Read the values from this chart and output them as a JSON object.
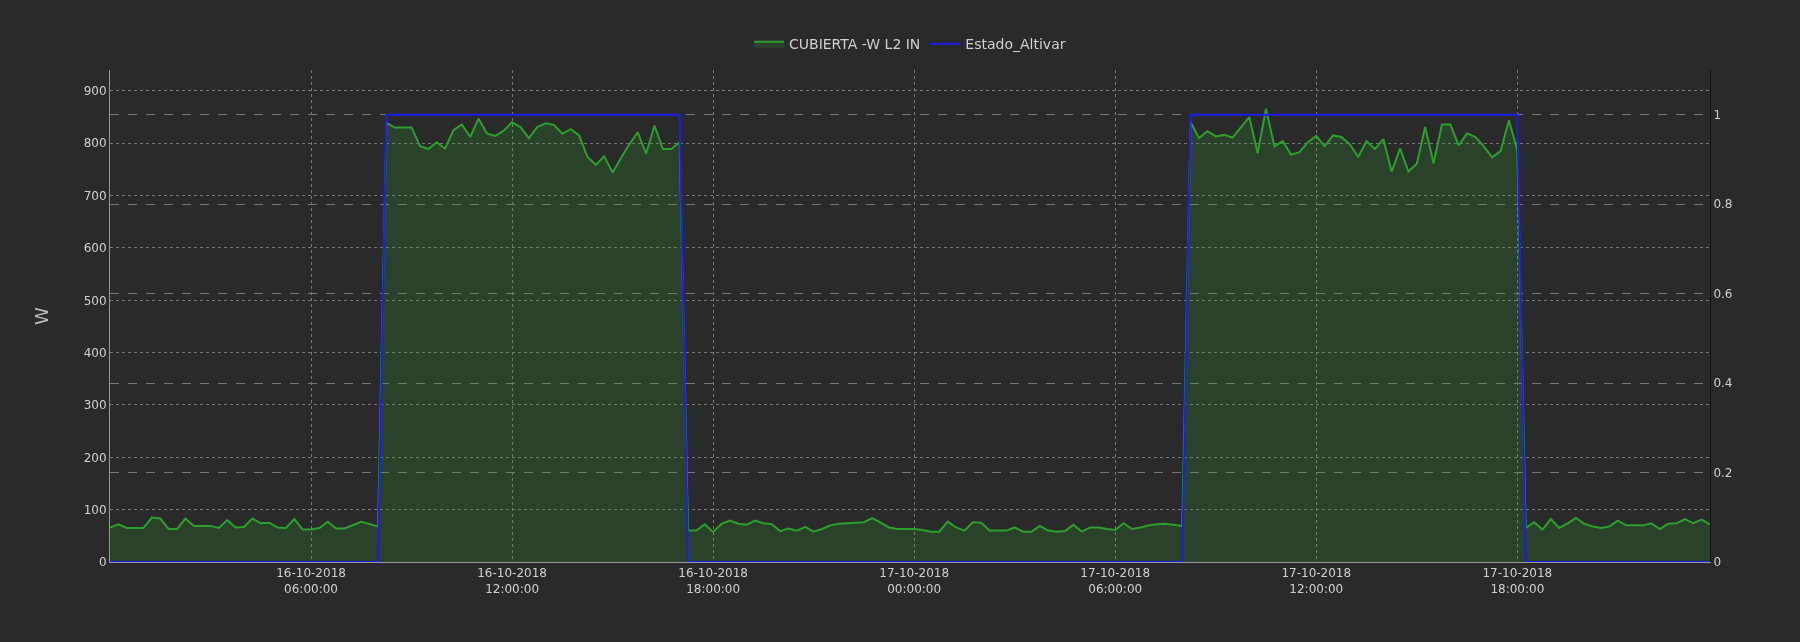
{
  "chart_data": {
    "type": "area",
    "ylabel": "W",
    "legend": "top",
    "grid": true,
    "marker": "none",
    "line_style": "solid",
    "xlim": [
      "2018-10-16T00:00",
      "2018-10-17T23:45"
    ],
    "xticks": [
      {
        "value": "2018-10-16T06:00",
        "label": "16-10-2018\n06:00:00"
      },
      {
        "value": "2018-10-16T12:00",
        "label": "16-10-2018\n12:00:00"
      },
      {
        "value": "2018-10-16T18:00",
        "label": "16-10-2018\n18:00:00"
      },
      {
        "value": "2018-10-17T00:00",
        "label": "17-10-2018\n00:00:00"
      },
      {
        "value": "2018-10-17T06:00",
        "label": "17-10-2018\n06:00:00"
      },
      {
        "value": "2018-10-17T12:00",
        "label": "17-10-2018\n12:00:00"
      },
      {
        "value": "2018-10-17T18:00",
        "label": "17-10-2018\n18:00:00"
      }
    ],
    "ylim": [
      0,
      940
    ],
    "yticks": [
      0,
      100,
      200,
      300,
      400,
      500,
      600,
      700,
      800,
      900
    ],
    "y2lim": [
      0,
      1.1
    ],
    "y2ticks": [
      0,
      0.2,
      0.4,
      0.6,
      0.8,
      1
    ],
    "series": [
      {
        "name": "CUBIERTA -W L2 IN",
        "color": "#2ca02c",
        "x": [
          "2018-10-16T00:00",
          "2018-10-16T00:15",
          "2018-10-16T00:30",
          "2018-10-16T01:00",
          "2018-10-16T01:15",
          "2018-10-16T01:30",
          "2018-10-16T01:45",
          "2018-10-16T02:00",
          "2018-10-16T02:15",
          "2018-10-16T02:30",
          "2018-10-16T03:00",
          "2018-10-16T03:15",
          "2018-10-16T03:30",
          "2018-10-16T03:45",
          "2018-10-16T04:00",
          "2018-10-16T04:15",
          "2018-10-16T04:30",
          "2018-10-16T04:45",
          "2018-10-16T05:00",
          "2018-10-16T05:15",
          "2018-10-16T05:30",
          "2018-10-16T05:45",
          "2018-10-16T06:00",
          "2018-10-16T06:15",
          "2018-10-16T06:30",
          "2018-10-16T06:45",
          "2018-10-16T07:00",
          "2018-10-16T07:30",
          "2018-10-16T08:00",
          "2018-10-16T08:15",
          "2018-10-16T08:30",
          "2018-10-16T08:45",
          "2018-10-16T09:00",
          "2018-10-16T09:15",
          "2018-10-16T09:30",
          "2018-10-16T09:45",
          "2018-10-16T10:00",
          "2018-10-16T10:15",
          "2018-10-16T10:30",
          "2018-10-16T10:45",
          "2018-10-16T11:00",
          "2018-10-16T11:15",
          "2018-10-16T11:30",
          "2018-10-16T11:45",
          "2018-10-16T12:00",
          "2018-10-16T12:15",
          "2018-10-16T12:30",
          "2018-10-16T12:45",
          "2018-10-16T13:00",
          "2018-10-16T13:15",
          "2018-10-16T13:30",
          "2018-10-16T13:45",
          "2018-10-16T14:00",
          "2018-10-16T14:15",
          "2018-10-16T14:30",
          "2018-10-16T14:45",
          "2018-10-16T15:00",
          "2018-10-16T15:15",
          "2018-10-16T15:30",
          "2018-10-16T15:45",
          "2018-10-16T16:00",
          "2018-10-16T16:15",
          "2018-10-16T16:30",
          "2018-10-16T16:45",
          "2018-10-16T17:00",
          "2018-10-16T17:15",
          "2018-10-16T17:30",
          "2018-10-16T17:45",
          "2018-10-16T18:00",
          "2018-10-16T18:15",
          "2018-10-16T18:30",
          "2018-10-16T18:45",
          "2018-10-16T19:00",
          "2018-10-16T19:15",
          "2018-10-16T19:30",
          "2018-10-16T19:45",
          "2018-10-16T20:00",
          "2018-10-16T20:15",
          "2018-10-16T20:30",
          "2018-10-16T20:45",
          "2018-10-16T21:00",
          "2018-10-16T21:15",
          "2018-10-16T21:30",
          "2018-10-16T21:45",
          "2018-10-16T22:00",
          "2018-10-16T22:15",
          "2018-10-16T22:30",
          "2018-10-16T22:45",
          "2018-10-16T23:00",
          "2018-10-16T23:15",
          "2018-10-16T23:30",
          "2018-10-16T23:45",
          "2018-10-17T00:00",
          "2018-10-17T00:15",
          "2018-10-17T00:30",
          "2018-10-17T00:45",
          "2018-10-17T01:00",
          "2018-10-17T01:15",
          "2018-10-17T01:30",
          "2018-10-17T01:45",
          "2018-10-17T02:00",
          "2018-10-17T02:15",
          "2018-10-17T02:30",
          "2018-10-17T02:45",
          "2018-10-17T03:00",
          "2018-10-17T03:15",
          "2018-10-17T03:30",
          "2018-10-17T03:45",
          "2018-10-17T04:00",
          "2018-10-17T04:15",
          "2018-10-17T04:30",
          "2018-10-17T04:45",
          "2018-10-17T05:00",
          "2018-10-17T05:15",
          "2018-10-17T05:30",
          "2018-10-17T05:45",
          "2018-10-17T06:00",
          "2018-10-17T06:15",
          "2018-10-17T06:30",
          "2018-10-17T06:45",
          "2018-10-17T07:00",
          "2018-10-17T07:15",
          "2018-10-17T07:30",
          "2018-10-17T08:00",
          "2018-10-17T08:15",
          "2018-10-17T08:30",
          "2018-10-17T08:45",
          "2018-10-17T09:00",
          "2018-10-17T09:15",
          "2018-10-17T09:30",
          "2018-10-17T10:00",
          "2018-10-17T10:15",
          "2018-10-17T10:30",
          "2018-10-17T10:45",
          "2018-10-17T11:00",
          "2018-10-17T11:15",
          "2018-10-17T11:30",
          "2018-10-17T11:45",
          "2018-10-17T12:00",
          "2018-10-17T12:15",
          "2018-10-17T12:30",
          "2018-10-17T12:45",
          "2018-10-17T13:00",
          "2018-10-17T13:15",
          "2018-10-17T13:30",
          "2018-10-17T13:45",
          "2018-10-17T14:00",
          "2018-10-17T14:15",
          "2018-10-17T14:30",
          "2018-10-17T14:45",
          "2018-10-17T15:00",
          "2018-10-17T15:15",
          "2018-10-17T15:30",
          "2018-10-17T15:45",
          "2018-10-17T16:00",
          "2018-10-17T16:15",
          "2018-10-17T16:30",
          "2018-10-17T16:45",
          "2018-10-17T17:00",
          "2018-10-17T17:15",
          "2018-10-17T17:30",
          "2018-10-17T17:45",
          "2018-10-17T18:00",
          "2018-10-17T18:15",
          "2018-10-17T18:30",
          "2018-10-17T18:45",
          "2018-10-17T19:00",
          "2018-10-17T19:15",
          "2018-10-17T19:30",
          "2018-10-17T19:45",
          "2018-10-17T20:00",
          "2018-10-17T20:15",
          "2018-10-17T20:30",
          "2018-10-17T20:45",
          "2018-10-17T21:00",
          "2018-10-17T21:15",
          "2018-10-17T21:30",
          "2018-10-17T21:45",
          "2018-10-17T22:00",
          "2018-10-17T22:15",
          "2018-10-17T22:30",
          "2018-10-17T22:45",
          "2018-10-17T23:00",
          "2018-10-17T23:15",
          "2018-10-17T23:30",
          "2018-10-17T23:45"
        ],
        "values": [
          66,
          72,
          65,
          65,
          85,
          83,
          63,
          63,
          83,
          69,
          69,
          65,
          80,
          66,
          67,
          83,
          74,
          75,
          66,
          65,
          82,
          62,
          62,
          65,
          77,
          64,
          64,
          77,
          68,
          839,
          830,
          830,
          830,
          795,
          789,
          802,
          790,
          825,
          836,
          812,
          847,
          819,
          814,
          824,
          840,
          831,
          810,
          831,
          838,
          835,
          818,
          827,
          815,
          774,
          759,
          775,
          744,
          772,
          798,
          821,
          780,
          834,
          789,
          789,
          802,
          60,
          60,
          72,
          57,
          73,
          79,
          73,
          71,
          79,
          74,
          72,
          59,
          64,
          60,
          67,
          58,
          63,
          70,
          73,
          74,
          75,
          76,
          84,
          75,
          66,
          63,
          63,
          63,
          61,
          58,
          58,
          77,
          66,
          60,
          76,
          75,
          60,
          60,
          60,
          66,
          58,
          58,
          69,
          60,
          58,
          59,
          71,
          58,
          66,
          66,
          63,
          61,
          74,
          63,
          66,
          70,
          72,
          73,
          69,
          840,
          810,
          823,
          813,
          816,
          811,
          850,
          781,
          866,
          794,
          804,
          778,
          783,
          802,
          814,
          794,
          815,
          812,
          798,
          774,
          804,
          789,
          808,
          746,
          790,
          746,
          761,
          831,
          762,
          836,
          836,
          796,
          819,
          812,
          794,
          773,
          785,
          844,
          786,
          65,
          76,
          62,
          82,
          65,
          74,
          84,
          73,
          68,
          65,
          68,
          79,
          70,
          70,
          70,
          74,
          63,
          73,
          74,
          82,
          74,
          81,
          72
        ]
      },
      {
        "name": "Estado_Altivar",
        "type": "line",
        "axis": "y2",
        "color": "#1c1cf0",
        "x": [
          "2018-10-16T00:00",
          "2018-10-16T08:00",
          "2018-10-16T08:15",
          "2018-10-16T17:00",
          "2018-10-16T17:15",
          "2018-10-17T08:00",
          "2018-10-17T08:15",
          "2018-10-17T18:00",
          "2018-10-17T18:15",
          "2018-10-17T23:45"
        ],
        "values": [
          0,
          0,
          1,
          1,
          0,
          0,
          1,
          1,
          0,
          0
        ]
      }
    ]
  }
}
